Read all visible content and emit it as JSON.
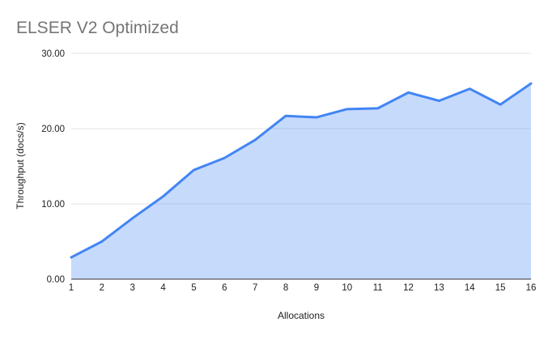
{
  "chart_data": {
    "type": "area",
    "title": "ELSER V2 Optimized",
    "xlabel": "Allocations",
    "ylabel": "Throughput (docs/s)",
    "x": [
      1,
      2,
      3,
      4,
      5,
      6,
      7,
      8,
      9,
      10,
      11,
      12,
      13,
      14,
      15,
      16
    ],
    "series": [
      {
        "name": "Throughput (docs/s)",
        "values": [
          2.9,
          5.0,
          8.1,
          11.0,
          14.5,
          16.1,
          18.5,
          21.7,
          21.5,
          22.6,
          22.7,
          24.8,
          23.7,
          25.3,
          23.2,
          26.0
        ]
      }
    ],
    "ylim": [
      0,
      30
    ],
    "y_ticks": [
      {
        "value": 0,
        "label": "0.00"
      },
      {
        "value": 10,
        "label": "10.00"
      },
      {
        "value": 20,
        "label": "20.00"
      },
      {
        "value": 30,
        "label": "30.00"
      }
    ],
    "grid": true,
    "legend": "none"
  },
  "colors": {
    "line": "#4285f4",
    "fill": "rgba(66,133,244,0.30)",
    "gridline": "#e3e3e3",
    "axis_line": "#333333",
    "tick_label": "#1f1f1f",
    "axis_title": "#1f1f1f",
    "title": "#757575"
  }
}
